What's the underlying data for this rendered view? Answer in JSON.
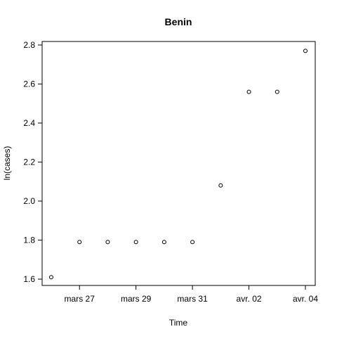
{
  "chart_data": {
    "type": "scatter",
    "title": "Benin",
    "xlabel": "Time",
    "ylabel": "ln(cases)",
    "x_tick_labels": [
      "mars 27",
      "mars 29",
      "mars 31",
      "avr. 02",
      "avr. 04"
    ],
    "y_tick_labels": [
      "1.6",
      "1.8",
      "2.0",
      "2.2",
      "2.4",
      "2.6",
      "2.8"
    ],
    "y_ticks": [
      1.6,
      1.8,
      2.0,
      2.2,
      2.4,
      2.6,
      2.8
    ],
    "x_ticks": [
      "03-27",
      "03-29",
      "03-31",
      "04-02",
      "04-04"
    ],
    "xlim": [
      "03-25",
      "04-04"
    ],
    "ylim": [
      1.6,
      2.8
    ],
    "grid": false,
    "legend": "none",
    "marker": "open-circle",
    "points": [
      {
        "x": "03-26",
        "y": 1.61
      },
      {
        "x": "03-27",
        "y": 1.79
      },
      {
        "x": "03-28",
        "y": 1.79
      },
      {
        "x": "03-29",
        "y": 1.79
      },
      {
        "x": "03-30",
        "y": 1.79
      },
      {
        "x": "03-31",
        "y": 1.79
      },
      {
        "x": "04-01",
        "y": 2.08
      },
      {
        "x": "04-02",
        "y": 2.56
      },
      {
        "x": "04-03",
        "y": 2.56
      },
      {
        "x": "04-04",
        "y": 2.77
      }
    ]
  }
}
